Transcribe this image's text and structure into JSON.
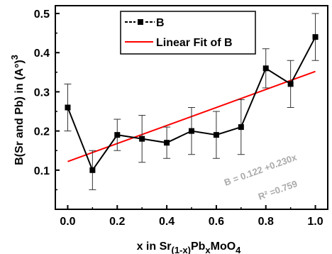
{
  "chart_data": {
    "type": "line",
    "title": "",
    "xlabel": "x in Sr(1-x)PbxMoO4",
    "xlabel_parts": {
      "prefix": "x in Sr",
      "sub1": "(1-x)",
      "mid": "Pb",
      "sub2": "x",
      "suffix": "MoO",
      "sub3": "4"
    },
    "ylabel": "B(Sr and Pb) in (A°)3",
    "ylabel_parts": {
      "main": "B(Sr and Pb) in (A°)",
      "sup": "3"
    },
    "xlim": [
      -0.05,
      1.05
    ],
    "ylim": [
      0.0,
      0.52
    ],
    "xticks": [
      0.0,
      0.2,
      0.4,
      0.6,
      0.8,
      1.0
    ],
    "xtick_labels": [
      "0.0",
      "0.2",
      "0.4",
      "0.6",
      "0.8",
      "1.0"
    ],
    "yticks": [
      0.1,
      0.2,
      0.3,
      0.4,
      0.5
    ],
    "ytick_labels": [
      "0.1",
      "0.2",
      "0.3",
      "0.4",
      "0.5"
    ],
    "grid": false,
    "legend_position": "top-left",
    "series": [
      {
        "name": "B",
        "color": "#000000",
        "marker": "square",
        "x": [
          0.0,
          0.1,
          0.2,
          0.3,
          0.4,
          0.5,
          0.6,
          0.7,
          0.8,
          0.9,
          1.0
        ],
        "y": [
          0.26,
          0.1,
          0.19,
          0.18,
          0.17,
          0.2,
          0.19,
          0.21,
          0.36,
          0.32,
          0.44
        ],
        "error": [
          0.06,
          0.05,
          0.04,
          0.06,
          0.04,
          0.06,
          0.06,
          0.07,
          0.05,
          0.06,
          0.06
        ]
      },
      {
        "name": "Linear Fit of B",
        "color": "#ff0000",
        "type": "line",
        "intercept": 0.122,
        "slope": 0.23,
        "x": [
          0.0,
          1.0
        ]
      }
    ],
    "annotations": [
      {
        "text": "B = 0.122 +0.230x",
        "color": "#aaaaaa"
      },
      {
        "text": "R² =0.759",
        "color": "#aaaaaa"
      }
    ]
  }
}
